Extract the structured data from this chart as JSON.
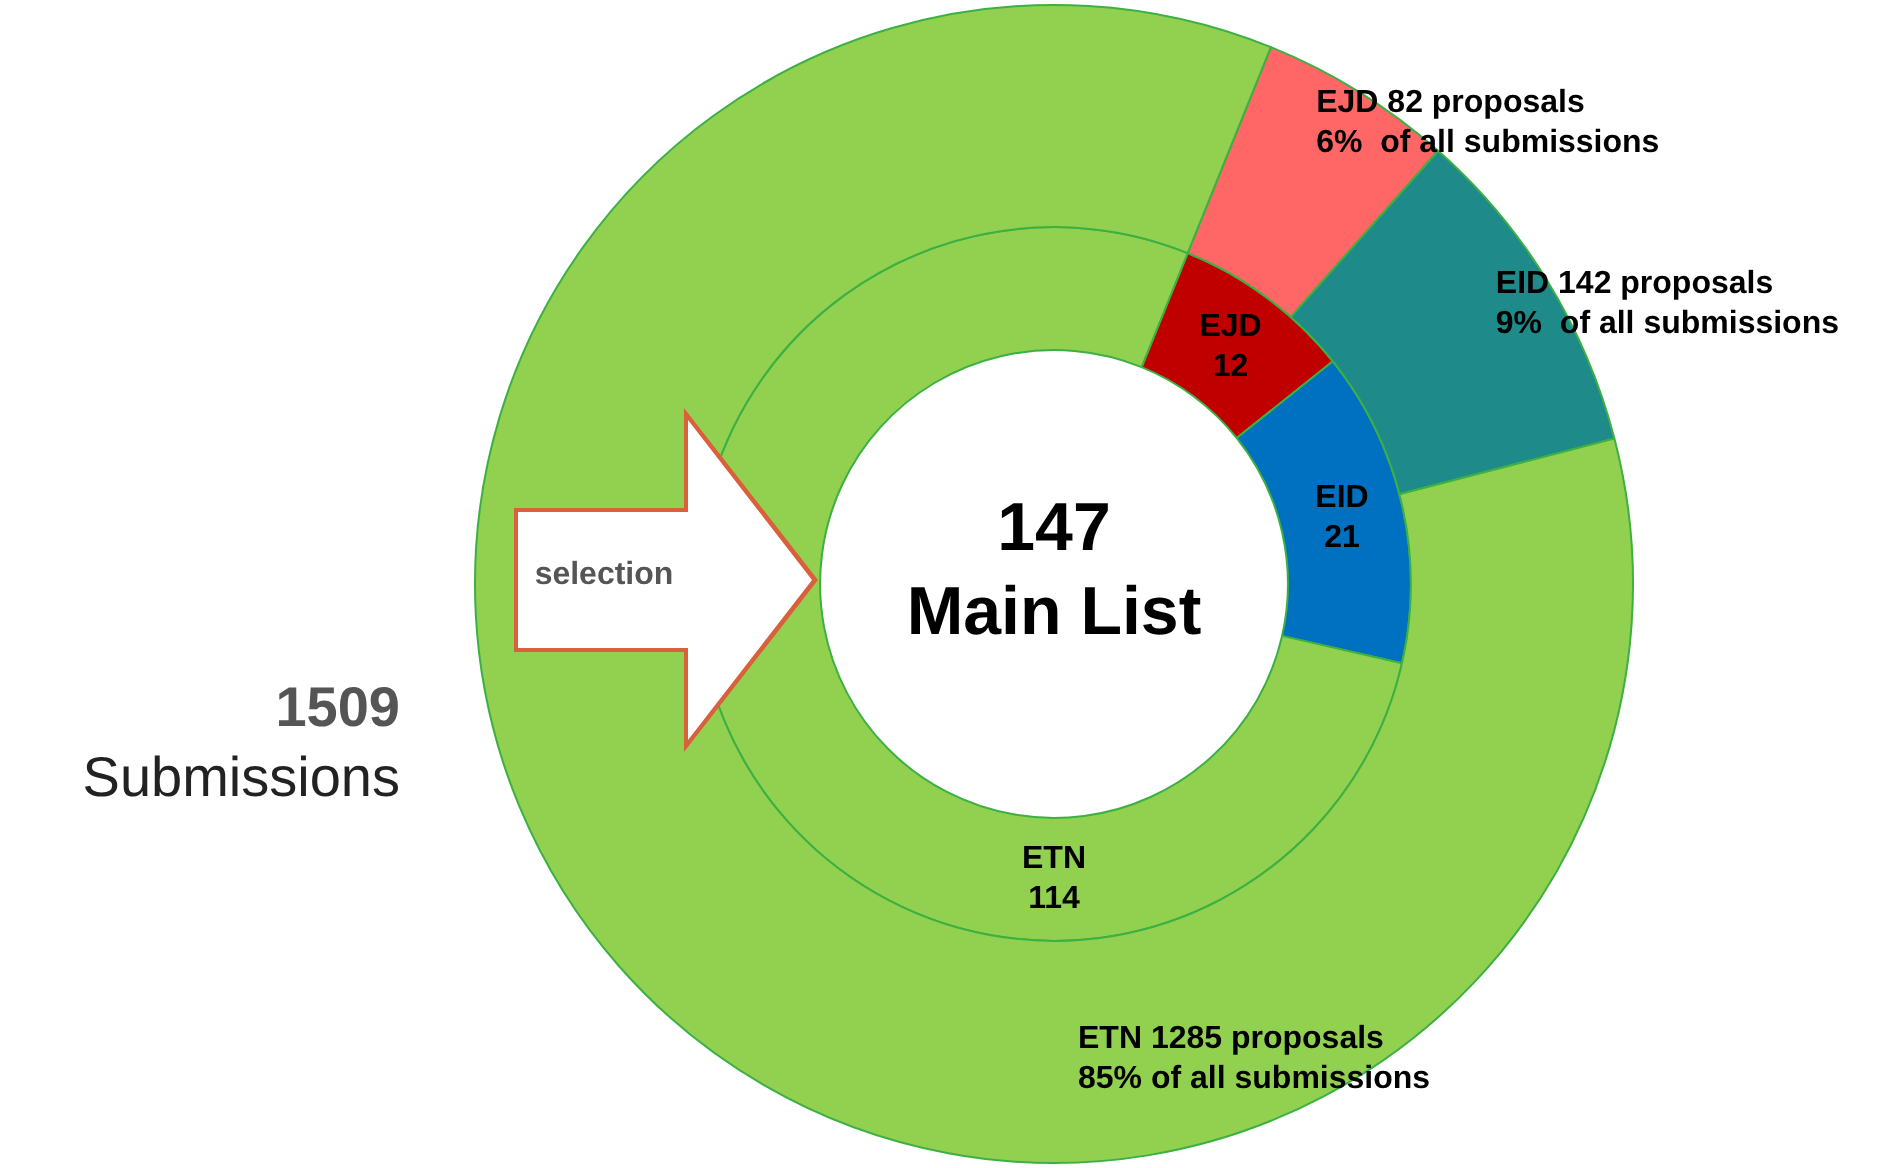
{
  "chart_data": {
    "type": "donut",
    "categories": [
      "EJD",
      "EID",
      "ETN"
    ],
    "series": [
      {
        "colors": [
          "#c00000",
          "#0070c0",
          "#92d050"
        ],
        "values": [
          12,
          21,
          114
        ],
        "value_labels": [
          "12",
          "21",
          "114"
        ]
      },
      {
        "colors": [
          "#ff6666",
          "#1f8a8a",
          "#92d050"
        ],
        "values": [
          82,
          142,
          1285
        ],
        "value_labels": [
          "EJD 82 proposals\n6%  of all submissions",
          "EID 142 proposals\n9%  of all submissions",
          "ETN 1285 proposals\n85% of all submissions"
        ]
      }
    ],
    "annotations": [
      "147",
      "Main List",
      "1509",
      "Submissions",
      "selection"
    ],
    "legend": false
  }
}
